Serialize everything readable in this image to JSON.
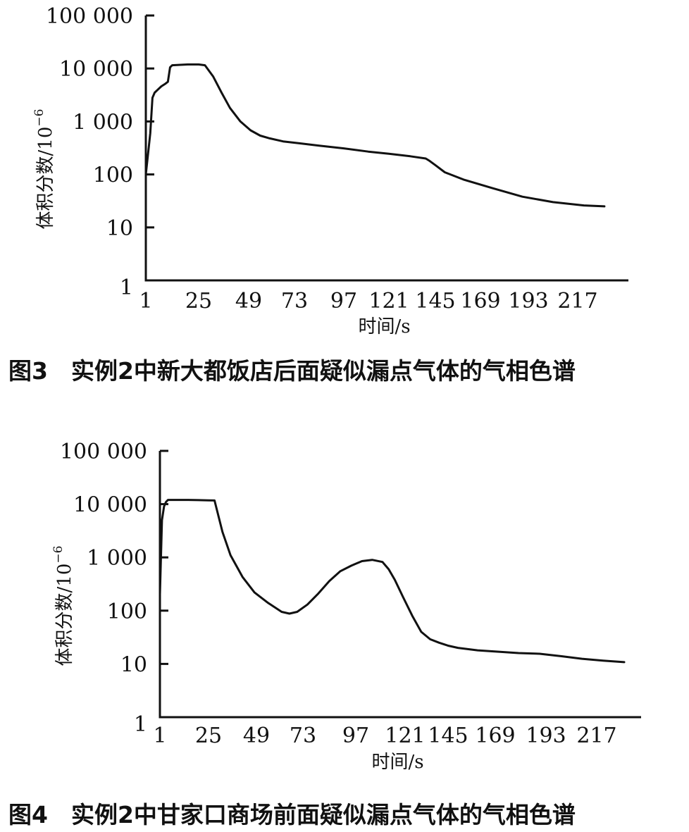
{
  "chart_data": [
    {
      "type": "line",
      "title": "",
      "caption": "图3　实例2中新大都饭店后面疑似漏点气体的气相色谱",
      "xlabel": "时间/s",
      "ylabel": "体积分数/10",
      "ylabel_exp": "−6",
      "yscale": "log",
      "ylim": [
        1,
        100000
      ],
      "xlim": [
        1,
        230
      ],
      "x_ticks": [
        "1",
        "25",
        "49",
        "73",
        "97",
        "121",
        "145",
        "169",
        "193",
        "217"
      ],
      "x_tick_values": [
        1,
        25,
        49,
        73,
        97,
        121,
        145,
        169,
        193,
        217
      ],
      "y_ticks": [
        "1",
        "10",
        "100",
        "1 000",
        "10 000",
        "100 000"
      ],
      "y_tick_values": [
        1,
        10,
        100,
        1000,
        10000,
        100000
      ],
      "series": [
        {
          "x": [
            1,
            3,
            4,
            5,
            8,
            10,
            11,
            12,
            13,
            16,
            20,
            25,
            28,
            32,
            36,
            40,
            45,
            50,
            55,
            60,
            67,
            75,
            85,
            97,
            110,
            121,
            132,
            140,
            142,
            145,
            150,
            160,
            175,
            190,
            205,
            220,
            230
          ],
          "y": [
            100,
            600,
            2800,
            3500,
            4600,
            5200,
            5600,
            10500,
            11500,
            11700,
            11900,
            11900,
            11500,
            7000,
            3500,
            1800,
            1000,
            680,
            540,
            480,
            420,
            390,
            350,
            310,
            270,
            245,
            220,
            200,
            180,
            150,
            110,
            80,
            55,
            38,
            30,
            26,
            25
          ]
        }
      ]
    },
    {
      "type": "line",
      "title": "",
      "caption": "图4　实例2中甘家口商场前面疑似漏点气体的气相色谱",
      "xlabel": "时间/s",
      "ylabel": "体积分数/10",
      "ylabel_exp": "−6",
      "yscale": "log",
      "ylim": [
        1,
        100000
      ],
      "xlim": [
        1,
        230
      ],
      "x_ticks": [
        "1",
        "25",
        "49",
        "73",
        "97",
        "121",
        "145",
        "169",
        "193",
        "217"
      ],
      "x_tick_values": [
        1,
        25,
        49,
        73,
        97,
        121,
        145,
        169,
        193,
        217
      ],
      "y_ticks": [
        "1",
        "10",
        "100",
        "1 000",
        "10 000",
        "100 000"
      ],
      "y_tick_values": [
        1,
        10,
        100,
        1000,
        10000,
        100000
      ],
      "series": [
        {
          "x": [
            1,
            2,
            3,
            4,
            5,
            10,
            15,
            20,
            25,
            28,
            32,
            36,
            42,
            48,
            55,
            62,
            66,
            70,
            75,
            80,
            85,
            90,
            95,
            100,
            105,
            110,
            113,
            116,
            120,
            125,
            130,
            135,
            140,
            145,
            150,
            160,
            170,
            180,
            190,
            200,
            210,
            220,
            230
          ],
          "y": [
            200,
            5000,
            9000,
            11000,
            12000,
            12000,
            12000,
            11900,
            11800,
            11700,
            3000,
            1100,
            430,
            220,
            140,
            95,
            88,
            95,
            130,
            210,
            360,
            550,
            700,
            850,
            900,
            820,
            600,
            380,
            180,
            80,
            40,
            29,
            25,
            22,
            20,
            18,
            17,
            16,
            15.5,
            14,
            12.5,
            11.5,
            10.8
          ]
        }
      ]
    }
  ]
}
